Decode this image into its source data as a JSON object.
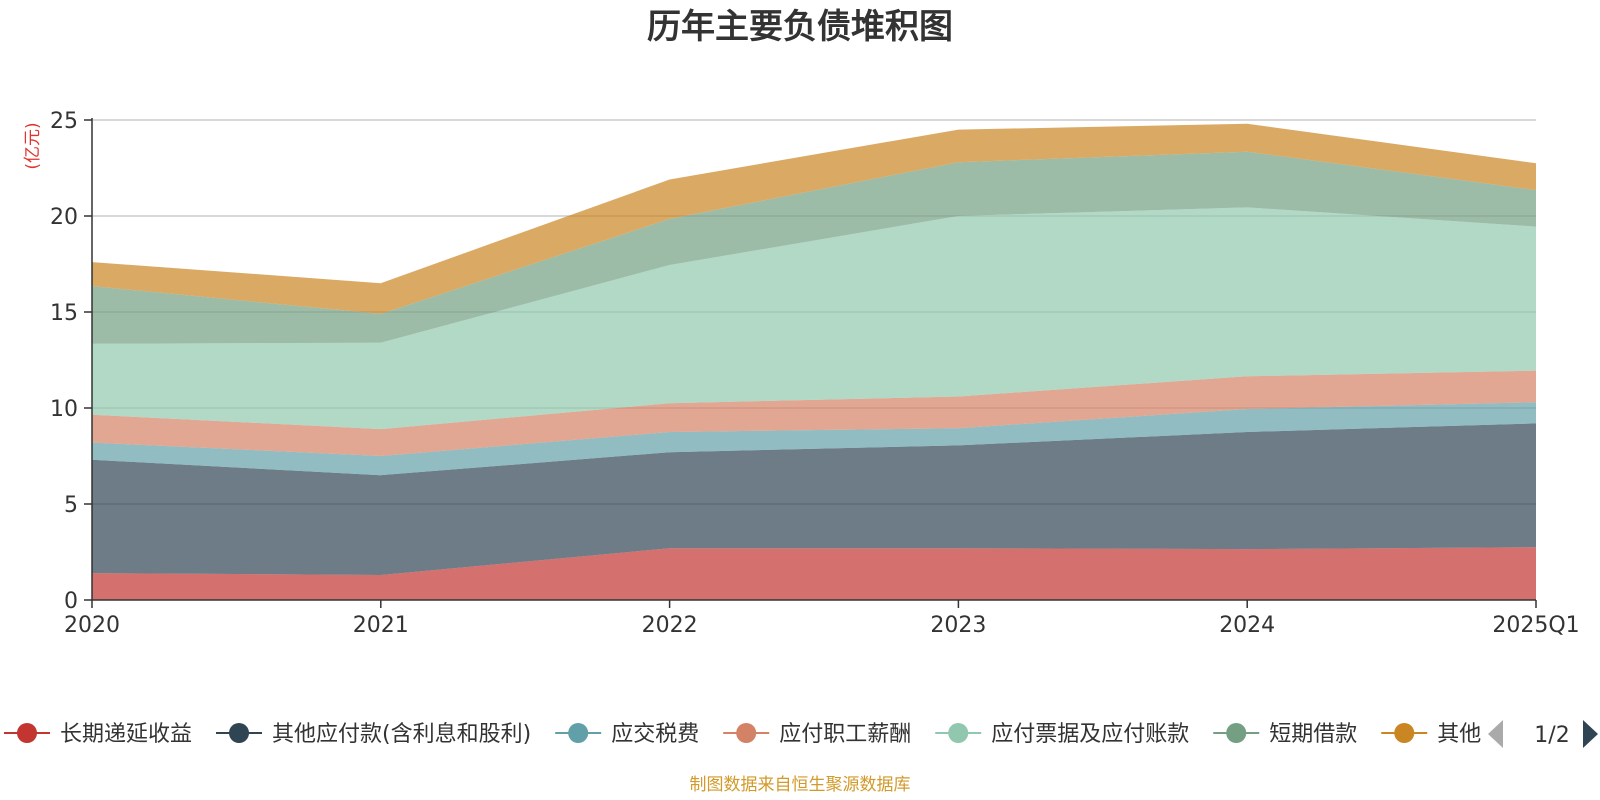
{
  "chart_data": {
    "type": "area",
    "stacked": true,
    "title": "历年主要负债堆积图",
    "ylabel": "(亿元)",
    "xlabel": "",
    "categories": [
      "2020",
      "2021",
      "2022",
      "2023",
      "2024",
      "2025Q1"
    ],
    "ylim": [
      0,
      25
    ],
    "yticks": [
      0,
      5,
      10,
      15,
      20,
      25
    ],
    "grid": true,
    "series": [
      {
        "name": "长期递延收益",
        "color": "#c23531",
        "values": [
          1.4,
          1.3,
          2.7,
          2.7,
          2.65,
          2.75
        ]
      },
      {
        "name": "其他应付款(含利息和股利)",
        "color": "#2f4554",
        "values": [
          5.9,
          5.2,
          5.0,
          5.35,
          6.1,
          6.45
        ]
      },
      {
        "name": "应交税费",
        "color": "#61a0a8",
        "values": [
          0.9,
          1.0,
          1.05,
          0.9,
          1.2,
          1.1
        ]
      },
      {
        "name": "应付职工薪酬",
        "color": "#d48265",
        "values": [
          1.45,
          1.4,
          1.5,
          1.65,
          1.7,
          1.65
        ]
      },
      {
        "name": "应付票据及应付账款",
        "color": "#91c7ae",
        "values": [
          3.7,
          4.5,
          7.2,
          9.4,
          8.8,
          7.5
        ]
      },
      {
        "name": "短期借款",
        "color": "#749f83",
        "values": [
          3.0,
          1.5,
          2.4,
          2.8,
          2.9,
          1.9
        ]
      },
      {
        "name": "其他",
        "color": "#ca8622",
        "values": [
          1.25,
          1.6,
          2.05,
          1.7,
          1.45,
          1.4
        ]
      }
    ],
    "legend_position": "bottom",
    "legend_page": "1/2"
  },
  "source_note": "制图数据来自恒生聚源数据库"
}
